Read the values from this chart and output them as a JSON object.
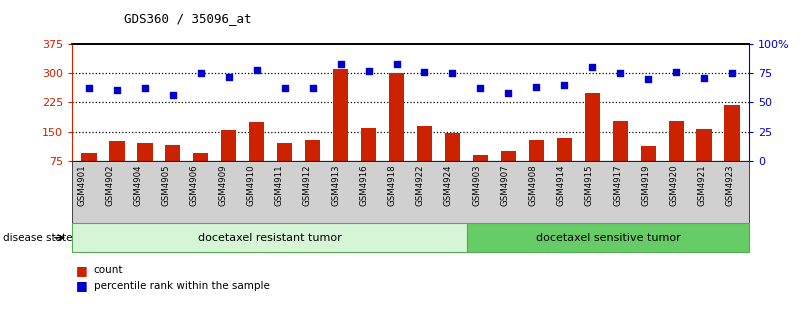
{
  "title": "GDS360 / 35096_at",
  "samples": [
    "GSM4901",
    "GSM4902",
    "GSM4904",
    "GSM4905",
    "GSM4906",
    "GSM4909",
    "GSM4910",
    "GSM4911",
    "GSM4912",
    "GSM4913",
    "GSM4916",
    "GSM4918",
    "GSM4922",
    "GSM4924",
    "GSM4903",
    "GSM4907",
    "GSM4908",
    "GSM4914",
    "GSM4915",
    "GSM4917",
    "GSM4919",
    "GSM4920",
    "GSM4921",
    "GSM4923"
  ],
  "counts": [
    95,
    128,
    122,
    116,
    97,
    155,
    175,
    122,
    130,
    310,
    160,
    300,
    165,
    148,
    90,
    100,
    130,
    135,
    248,
    178,
    113,
    178,
    158,
    218
  ],
  "pct_ranks": [
    62,
    61,
    62,
    56,
    75,
    72,
    78,
    62,
    62,
    83,
    77,
    83,
    76,
    75,
    62,
    58,
    63,
    65,
    80,
    75,
    70,
    76,
    71,
    75
  ],
  "group1_label": "docetaxel resistant tumor",
  "group1_count": 14,
  "group2_label": "docetaxel sensitive tumor",
  "group2_count": 10,
  "bar_color": "#cc2200",
  "dot_color": "#0000cc",
  "ylim_left": [
    75,
    375
  ],
  "ylim_right": [
    0,
    100
  ],
  "yticks_left": [
    75,
    150,
    225,
    300,
    375
  ],
  "yticks_right": [
    0,
    25,
    50,
    75,
    100
  ],
  "ytick_labels_right": [
    "0",
    "25",
    "50",
    "75",
    "100%"
  ],
  "group1_bg": "#d6f5d6",
  "group2_bg": "#66cc66",
  "group_border": "#55aa55",
  "disease_state_label": "disease state",
  "legend_count_label": "count",
  "legend_percentile_label": "percentile rank within the sample",
  "bg_color": "#ffffff",
  "xtick_bg": "#d0d0d0"
}
